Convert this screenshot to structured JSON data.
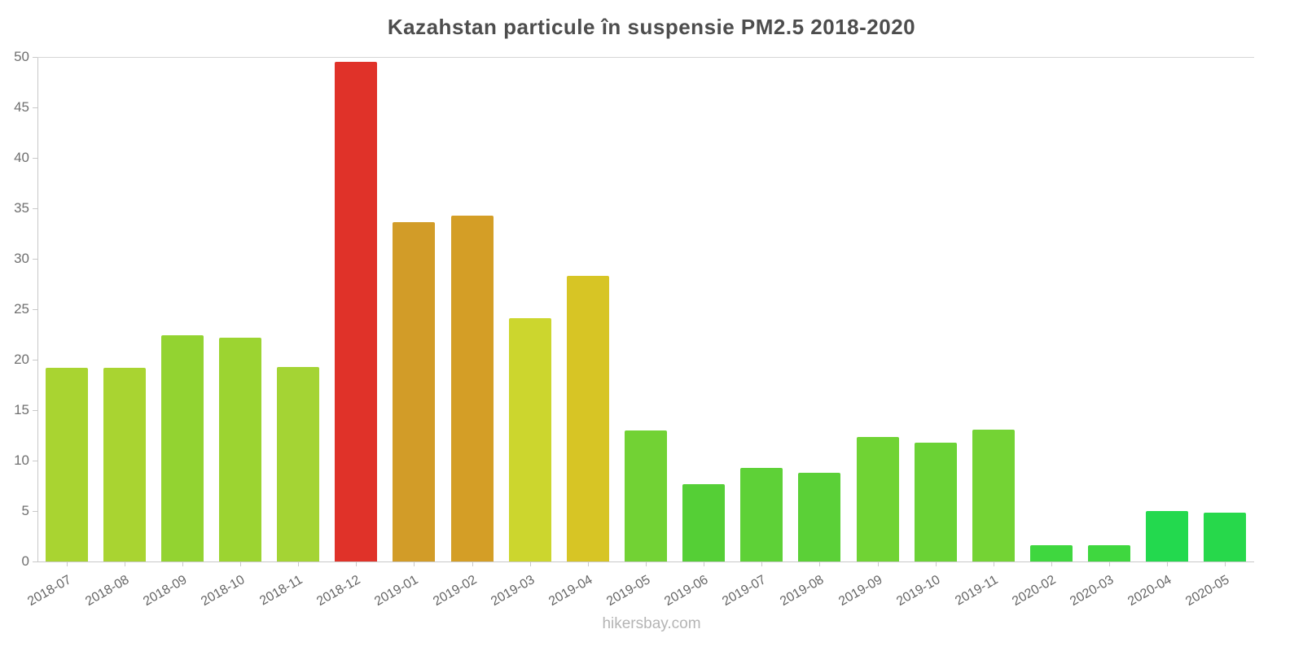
{
  "page": {
    "watermark": "hikersbay.com"
  },
  "chart_data": {
    "type": "bar",
    "title": "Kazahstan particule în suspensie PM2.5 2018-2020",
    "xlabel": "",
    "ylabel": "",
    "ylim": [
      0,
      50
    ],
    "yticks": [
      0,
      5,
      10,
      15,
      20,
      25,
      30,
      35,
      40,
      45,
      50
    ],
    "grid": "top-line-only",
    "legend_position": "none",
    "categories": [
      "2018-07",
      "2018-08",
      "2018-09",
      "2018-10",
      "2018-11",
      "2018-12",
      "2019-01",
      "2019-02",
      "2019-03",
      "2019-04",
      "2019-05",
      "2019-06",
      "2019-07",
      "2019-08",
      "2019-09",
      "2019-10",
      "2019-11",
      "2020-02",
      "2020-03",
      "2020-04",
      "2020-05"
    ],
    "values": [
      19.2,
      19.2,
      22.4,
      22.2,
      19.3,
      49.5,
      33.6,
      34.3,
      24.1,
      28.3,
      13.0,
      7.7,
      9.3,
      8.8,
      12.3,
      11.8,
      13.1,
      1.6,
      1.6,
      5.0,
      4.8
    ],
    "colors": [
      "#a9d431",
      "#a9d431",
      "#93d331",
      "#9cd431",
      "#a4d434",
      "#e03229",
      "#d29c28",
      "#d49e26",
      "#ccd62e",
      "#d7c525",
      "#72d234",
      "#55cf36",
      "#5ed137",
      "#5bd037",
      "#70d334",
      "#6bd235",
      "#74d334",
      "#3fd73f",
      "#3fd73f",
      "#23d94e",
      "#27d84b"
    ],
    "axis_color": "#c9c9c9",
    "label_color": "#666666",
    "title_color": "#4d4d4d"
  }
}
